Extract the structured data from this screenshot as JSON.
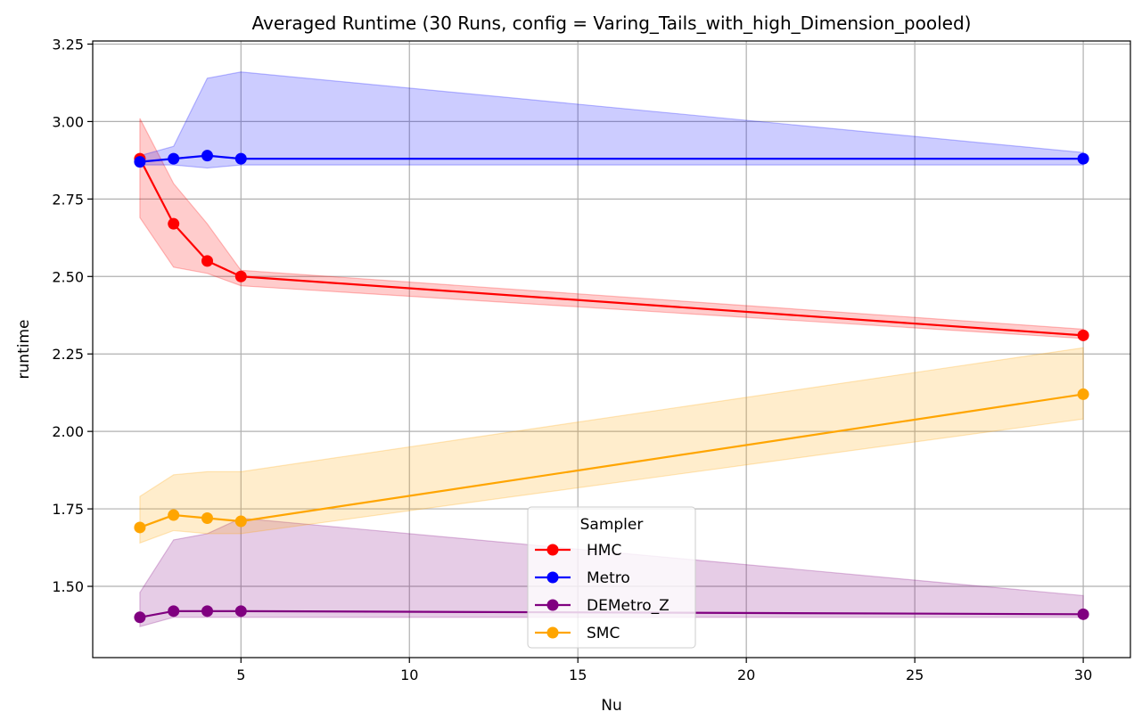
{
  "chart_data": {
    "type": "line",
    "title": "Averaged Runtime (30 Runs, config = Varing_Tails_with_high_Dimension_pooled)",
    "xlabel": "Nu",
    "ylabel": "runtime",
    "xlim": [
      0.6,
      31.4
    ],
    "ylim": [
      1.27,
      3.26
    ],
    "xticks": [
      5,
      10,
      15,
      20,
      25,
      30
    ],
    "yticks": [
      1.5,
      1.75,
      2.0,
      2.25,
      2.5,
      2.75,
      3.0,
      3.25
    ],
    "xtick_labels": [
      "5",
      "10",
      "15",
      "20",
      "25",
      "30"
    ],
    "ytick_labels": [
      "1.50",
      "1.75",
      "2.00",
      "2.25",
      "2.50",
      "2.75",
      "3.00",
      "3.25"
    ],
    "grid": true,
    "legend": {
      "title": "Sampler",
      "placement": "lower-center"
    },
    "x": [
      2,
      3,
      4,
      5,
      30
    ],
    "series": [
      {
        "name": "HMC",
        "color": "#ff0000",
        "values": [
          2.88,
          2.67,
          2.55,
          2.5,
          2.31
        ],
        "lower": [
          2.69,
          2.53,
          2.51,
          2.47,
          2.3
        ],
        "upper": [
          3.01,
          2.8,
          2.67,
          2.52,
          2.33
        ]
      },
      {
        "name": "Metro",
        "color": "#0000ff",
        "values": [
          2.87,
          2.88,
          2.89,
          2.88,
          2.88
        ],
        "lower": [
          2.86,
          2.86,
          2.85,
          2.86,
          2.86
        ],
        "upper": [
          2.89,
          2.92,
          3.14,
          3.16,
          2.9
        ]
      },
      {
        "name": "DEMetro_Z",
        "color": "#800080",
        "values": [
          1.4,
          1.42,
          1.42,
          1.42,
          1.41
        ],
        "lower": [
          1.37,
          1.4,
          1.4,
          1.4,
          1.4
        ],
        "upper": [
          1.48,
          1.65,
          1.67,
          1.72,
          1.47
        ]
      },
      {
        "name": "SMC",
        "color": "#ffa500",
        "values": [
          1.69,
          1.73,
          1.72,
          1.71,
          2.12
        ],
        "lower": [
          1.64,
          1.68,
          1.67,
          1.67,
          2.04
        ],
        "upper": [
          1.79,
          1.86,
          1.87,
          1.87,
          2.27
        ]
      }
    ]
  }
}
